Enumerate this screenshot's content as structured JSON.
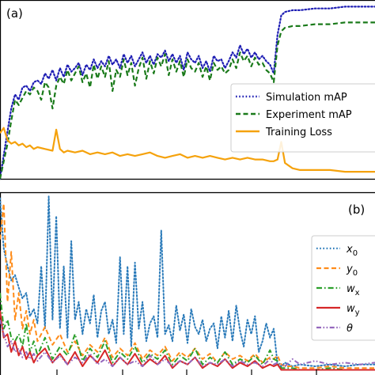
{
  "chart_data": [
    {
      "type": "line",
      "panel_label": "(a)",
      "xlim": [
        0,
        100
      ],
      "ylim": [
        0,
        1
      ],
      "grid": false,
      "legend_position": "right-center",
      "series": [
        {
          "name": "Simulation mAP",
          "color": "#1f1fb4",
          "style": "dotted",
          "x": [
            0,
            2,
            3,
            4,
            5,
            6,
            7,
            8,
            9,
            10,
            11,
            12,
            13,
            14,
            15,
            16,
            17,
            18,
            19,
            20,
            21,
            22,
            23,
            24,
            25,
            26,
            27,
            28,
            29,
            30,
            31,
            32,
            33,
            34,
            35,
            36,
            37,
            38,
            39,
            40,
            41,
            42,
            43,
            44,
            45,
            46,
            47,
            48,
            49,
            50,
            51,
            52,
            53,
            54,
            55,
            56,
            57,
            58,
            59,
            60,
            61,
            62,
            63,
            64,
            65,
            66,
            67,
            68,
            69,
            70,
            71,
            72,
            73,
            74,
            75,
            76,
            78,
            80,
            84,
            88,
            92,
            96,
            100
          ],
          "values": [
            0.0,
            0.27,
            0.4,
            0.48,
            0.45,
            0.52,
            0.53,
            0.5,
            0.55,
            0.56,
            0.54,
            0.6,
            0.57,
            0.62,
            0.56,
            0.63,
            0.58,
            0.65,
            0.61,
            0.63,
            0.66,
            0.59,
            0.65,
            0.62,
            0.68,
            0.63,
            0.67,
            0.64,
            0.7,
            0.65,
            0.68,
            0.63,
            0.71,
            0.66,
            0.7,
            0.64,
            0.68,
            0.72,
            0.66,
            0.7,
            0.65,
            0.71,
            0.69,
            0.73,
            0.67,
            0.71,
            0.66,
            0.7,
            0.62,
            0.72,
            0.68,
            0.66,
            0.7,
            0.63,
            0.67,
            0.61,
            0.7,
            0.67,
            0.68,
            0.63,
            0.67,
            0.72,
            0.69,
            0.76,
            0.71,
            0.74,
            0.69,
            0.72,
            0.68,
            0.7,
            0.67,
            0.65,
            0.6,
            0.82,
            0.93,
            0.95,
            0.96,
            0.96,
            0.97,
            0.97,
            0.98,
            0.98,
            0.98
          ]
        },
        {
          "name": "Experiment mAP",
          "color": "#1a7a1a",
          "style": "dashed",
          "x": [
            0,
            2,
            3,
            4,
            5,
            6,
            7,
            8,
            9,
            10,
            11,
            12,
            13,
            14,
            15,
            16,
            17,
            18,
            19,
            20,
            21,
            22,
            23,
            24,
            25,
            26,
            27,
            28,
            29,
            30,
            31,
            32,
            33,
            34,
            35,
            36,
            37,
            38,
            39,
            40,
            41,
            42,
            43,
            44,
            45,
            46,
            47,
            48,
            49,
            50,
            51,
            52,
            53,
            54,
            55,
            56,
            57,
            58,
            59,
            60,
            61,
            62,
            63,
            64,
            65,
            66,
            67,
            68,
            69,
            70,
            71,
            72,
            73,
            74,
            75,
            76,
            78,
            80,
            84,
            88,
            92,
            96,
            100
          ],
          "values": [
            0.0,
            0.2,
            0.33,
            0.45,
            0.42,
            0.46,
            0.5,
            0.48,
            0.52,
            0.5,
            0.45,
            0.55,
            0.52,
            0.4,
            0.53,
            0.58,
            0.54,
            0.62,
            0.56,
            0.6,
            0.64,
            0.55,
            0.6,
            0.52,
            0.65,
            0.57,
            0.64,
            0.58,
            0.67,
            0.5,
            0.62,
            0.58,
            0.68,
            0.59,
            0.66,
            0.53,
            0.63,
            0.69,
            0.57,
            0.67,
            0.6,
            0.69,
            0.64,
            0.71,
            0.59,
            0.68,
            0.61,
            0.67,
            0.58,
            0.68,
            0.63,
            0.61,
            0.66,
            0.58,
            0.64,
            0.56,
            0.66,
            0.62,
            0.64,
            0.6,
            0.62,
            0.68,
            0.63,
            0.72,
            0.67,
            0.7,
            0.64,
            0.69,
            0.65,
            0.66,
            0.62,
            0.6,
            0.55,
            0.76,
            0.84,
            0.86,
            0.87,
            0.87,
            0.88,
            0.88,
            0.89,
            0.89,
            0.89
          ]
        },
        {
          "name": "Training Loss",
          "color": "#f5a20c",
          "style": "solid",
          "x": [
            0,
            1,
            2,
            3,
            4,
            5,
            6,
            7,
            8,
            9,
            10,
            12,
            14,
            15,
            16,
            17,
            18,
            20,
            22,
            24,
            26,
            28,
            30,
            32,
            34,
            36,
            38,
            40,
            42,
            44,
            46,
            48,
            50,
            52,
            54,
            56,
            58,
            60,
            62,
            64,
            66,
            68,
            70,
            72,
            73,
            74,
            75,
            76,
            78,
            80,
            84,
            88,
            92,
            96,
            100
          ],
          "values": [
            0.26,
            0.29,
            0.22,
            0.2,
            0.21,
            0.19,
            0.2,
            0.18,
            0.19,
            0.17,
            0.18,
            0.17,
            0.16,
            0.28,
            0.17,
            0.15,
            0.16,
            0.15,
            0.16,
            0.14,
            0.15,
            0.14,
            0.15,
            0.13,
            0.14,
            0.13,
            0.14,
            0.15,
            0.13,
            0.12,
            0.13,
            0.14,
            0.12,
            0.13,
            0.12,
            0.13,
            0.12,
            0.11,
            0.12,
            0.11,
            0.12,
            0.11,
            0.11,
            0.1,
            0.1,
            0.11,
            0.21,
            0.09,
            0.06,
            0.05,
            0.05,
            0.05,
            0.04,
            0.04,
            0.04
          ]
        }
      ]
    },
    {
      "type": "line",
      "panel_label": "(b)",
      "xlim": [
        0,
        100
      ],
      "ylim": [
        0,
        1
      ],
      "grid": false,
      "legend_position": "right-center",
      "series": [
        {
          "name": "x",
          "subscript": "0",
          "color": "#2b7bba",
          "style": "dotted",
          "x": [
            0,
            1,
            2,
            3,
            4,
            5,
            6,
            7,
            8,
            9,
            10,
            11,
            12,
            13,
            14,
            15,
            16,
            17,
            18,
            19,
            20,
            21,
            22,
            23,
            24,
            25,
            26,
            27,
            28,
            29,
            30,
            31,
            32,
            33,
            34,
            35,
            36,
            37,
            38,
            39,
            40,
            41,
            42,
            43,
            44,
            45,
            46,
            47,
            48,
            49,
            50,
            51,
            52,
            53,
            54,
            55,
            56,
            57,
            58,
            59,
            60,
            61,
            62,
            63,
            64,
            65,
            66,
            67,
            68,
            69,
            70,
            71,
            72,
            73,
            74,
            75,
            76,
            78,
            80,
            84,
            88,
            92,
            96,
            100
          ],
          "values": [
            0.98,
            0.7,
            0.6,
            0.52,
            0.55,
            0.48,
            0.42,
            0.45,
            0.32,
            0.36,
            0.28,
            0.6,
            0.25,
            0.99,
            0.3,
            0.88,
            0.25,
            0.6,
            0.2,
            0.74,
            0.3,
            0.4,
            0.22,
            0.36,
            0.28,
            0.44,
            0.2,
            0.35,
            0.4,
            0.22,
            0.3,
            0.17,
            0.65,
            0.22,
            0.6,
            0.15,
            0.62,
            0.25,
            0.4,
            0.18,
            0.28,
            0.32,
            0.2,
            0.8,
            0.22,
            0.27,
            0.18,
            0.38,
            0.24,
            0.33,
            0.17,
            0.36,
            0.26,
            0.22,
            0.3,
            0.18,
            0.25,
            0.28,
            0.14,
            0.32,
            0.2,
            0.35,
            0.18,
            0.38,
            0.24,
            0.15,
            0.3,
            0.22,
            0.32,
            0.12,
            0.18,
            0.28,
            0.2,
            0.25,
            0.05,
            0.04,
            0.06,
            0.04,
            0.05,
            0.04,
            0.05,
            0.04,
            0.05,
            0.05
          ]
        },
        {
          "name": "y",
          "subscript": "0",
          "color": "#ff8c1a",
          "style": "dashed",
          "x": [
            0,
            1,
            2,
            3,
            4,
            5,
            6,
            7,
            8,
            9,
            10,
            12,
            14,
            16,
            18,
            20,
            22,
            24,
            26,
            28,
            30,
            32,
            34,
            36,
            38,
            40,
            42,
            44,
            46,
            48,
            50,
            52,
            54,
            56,
            58,
            60,
            62,
            64,
            66,
            68,
            70,
            72,
            73,
            74,
            75,
            76,
            78,
            80,
            84,
            88,
            92,
            96,
            100
          ],
          "values": [
            0.75,
            0.95,
            0.4,
            0.68,
            0.3,
            0.45,
            0.25,
            0.35,
            0.22,
            0.3,
            0.18,
            0.26,
            0.16,
            0.22,
            0.12,
            0.18,
            0.1,
            0.16,
            0.12,
            0.2,
            0.09,
            0.14,
            0.1,
            0.17,
            0.08,
            0.13,
            0.1,
            0.15,
            0.07,
            0.12,
            0.09,
            0.14,
            0.08,
            0.11,
            0.06,
            0.12,
            0.08,
            0.1,
            0.07,
            0.11,
            0.06,
            0.09,
            0.08,
            0.1,
            0.05,
            0.04,
            0.04,
            0.03,
            0.03,
            0.04,
            0.03,
            0.03,
            0.03
          ]
        },
        {
          "name": "w",
          "subscript": "x",
          "color": "#2ca02c",
          "style": "dashdot",
          "x": [
            0,
            1,
            2,
            3,
            4,
            5,
            6,
            7,
            8,
            9,
            10,
            12,
            14,
            16,
            18,
            20,
            22,
            24,
            26,
            28,
            30,
            32,
            34,
            36,
            38,
            40,
            42,
            44,
            46,
            48,
            50,
            52,
            54,
            56,
            58,
            60,
            62,
            64,
            66,
            68,
            70,
            72,
            73,
            74,
            75,
            76,
            78,
            80,
            84,
            88,
            92,
            96,
            100
          ],
          "values": [
            0.45,
            0.25,
            0.3,
            0.2,
            0.18,
            0.22,
            0.15,
            0.28,
            0.12,
            0.18,
            0.1,
            0.2,
            0.08,
            0.15,
            0.1,
            0.22,
            0.07,
            0.14,
            0.09,
            0.18,
            0.06,
            0.12,
            0.08,
            0.15,
            0.06,
            0.11,
            0.08,
            0.13,
            0.05,
            0.1,
            0.07,
            0.14,
            0.05,
            0.09,
            0.06,
            0.12,
            0.05,
            0.08,
            0.06,
            0.1,
            0.05,
            0.13,
            0.08,
            0.07,
            0.03,
            0.03,
            0.03,
            0.02,
            0.02,
            0.03,
            0.02,
            0.02,
            0.02
          ]
        },
        {
          "name": "w",
          "subscript": "y",
          "color": "#d62728",
          "style": "solid",
          "x": [
            0,
            1,
            2,
            3,
            4,
            5,
            6,
            7,
            8,
            9,
            10,
            12,
            14,
            16,
            18,
            20,
            22,
            24,
            26,
            28,
            30,
            32,
            34,
            36,
            38,
            40,
            42,
            44,
            46,
            48,
            50,
            52,
            54,
            56,
            58,
            60,
            62,
            64,
            66,
            68,
            70,
            72,
            73,
            74,
            75,
            76,
            78,
            80,
            84,
            88,
            92,
            96,
            100
          ],
          "values": [
            0.35,
            0.2,
            0.22,
            0.12,
            0.18,
            0.1,
            0.15,
            0.08,
            0.12,
            0.06,
            0.1,
            0.14,
            0.06,
            0.11,
            0.05,
            0.12,
            0.04,
            0.1,
            0.06,
            0.13,
            0.04,
            0.09,
            0.05,
            0.11,
            0.04,
            0.08,
            0.05,
            0.1,
            0.03,
            0.07,
            0.05,
            0.09,
            0.03,
            0.06,
            0.04,
            0.08,
            0.03,
            0.06,
            0.04,
            0.07,
            0.03,
            0.05,
            0.04,
            0.05,
            0.02,
            0.02,
            0.02,
            0.02,
            0.02,
            0.02,
            0.02,
            0.02,
            0.02
          ]
        },
        {
          "name": "θ",
          "subscript": "",
          "color": "#9467bd",
          "style": "dashdotdot",
          "x": [
            0,
            1,
            2,
            3,
            4,
            5,
            6,
            7,
            8,
            9,
            10,
            12,
            14,
            16,
            18,
            20,
            22,
            24,
            26,
            28,
            30,
            32,
            34,
            36,
            38,
            40,
            42,
            44,
            46,
            48,
            50,
            52,
            54,
            56,
            58,
            60,
            62,
            64,
            66,
            68,
            70,
            72,
            73,
            74,
            75,
            76,
            78,
            80,
            84,
            88,
            92,
            96,
            100
          ],
          "values": [
            0.3,
            0.22,
            0.15,
            0.18,
            0.12,
            0.14,
            0.09,
            0.12,
            0.08,
            0.11,
            0.07,
            0.12,
            0.06,
            0.1,
            0.05,
            0.09,
            0.06,
            0.11,
            0.05,
            0.08,
            0.04,
            0.09,
            0.05,
            0.07,
            0.04,
            0.1,
            0.05,
            0.08,
            0.04,
            0.07,
            0.05,
            0.09,
            0.04,
            0.06,
            0.05,
            0.08,
            0.04,
            0.07,
            0.05,
            0.06,
            0.04,
            0.08,
            0.05,
            0.06,
            0.05,
            0.04,
            0.08,
            0.05,
            0.07,
            0.05,
            0.06,
            0.05,
            0.06
          ]
        }
      ]
    }
  ]
}
